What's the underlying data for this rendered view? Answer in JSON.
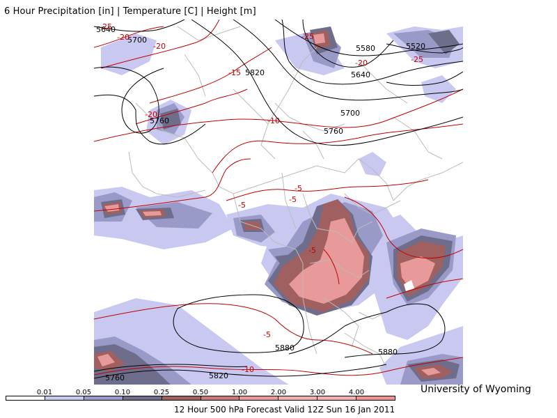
{
  "map": {
    "title": "6 Hour Precipitation [in] | Temperature [C] | Height [m]",
    "credit": "University of Wyoming",
    "caption": "12 Hour 500 hPa Forecast Valid 12Z Sun 16 Jan 2011",
    "legend": {
      "ticks": [
        "0.01",
        "0.05",
        "0.10",
        "0.25",
        "0.50",
        "1.00",
        "2.00",
        "3.00",
        "4.00"
      ],
      "colors": [
        "#ffffff",
        "#c8c8f0",
        "#9a9ac8",
        "#6e6e8c",
        "#a06060",
        "#c87a7a",
        "#e89a9a",
        "#f0b0b0",
        "#f4b0b0",
        "#f09090"
      ]
    },
    "height_labels": [
      "5640",
      "5700",
      "5820",
      "5580",
      "5520",
      "5640",
      "5760",
      "5700",
      "5760",
      "5880",
      "5880",
      "5820",
      "5760"
    ],
    "temp_labels": [
      "-25",
      "-20",
      "-20",
      "-15",
      "-25",
      "-20",
      "-25",
      "-20",
      "-10",
      "-5",
      "-5",
      "-5",
      "-5",
      "-5",
      "-10"
    ],
    "colors": {
      "height_contour": "#000000",
      "temperature_contour": "#c00000",
      "borders": "#bbbbbb",
      "light_precip": "#c8c8f0",
      "medium_precip": "#9a9ac8",
      "heavy_precip": "#6e6e8c",
      "dark_red_precip": "#a06060",
      "pink_precip": "#e89a9a"
    }
  }
}
